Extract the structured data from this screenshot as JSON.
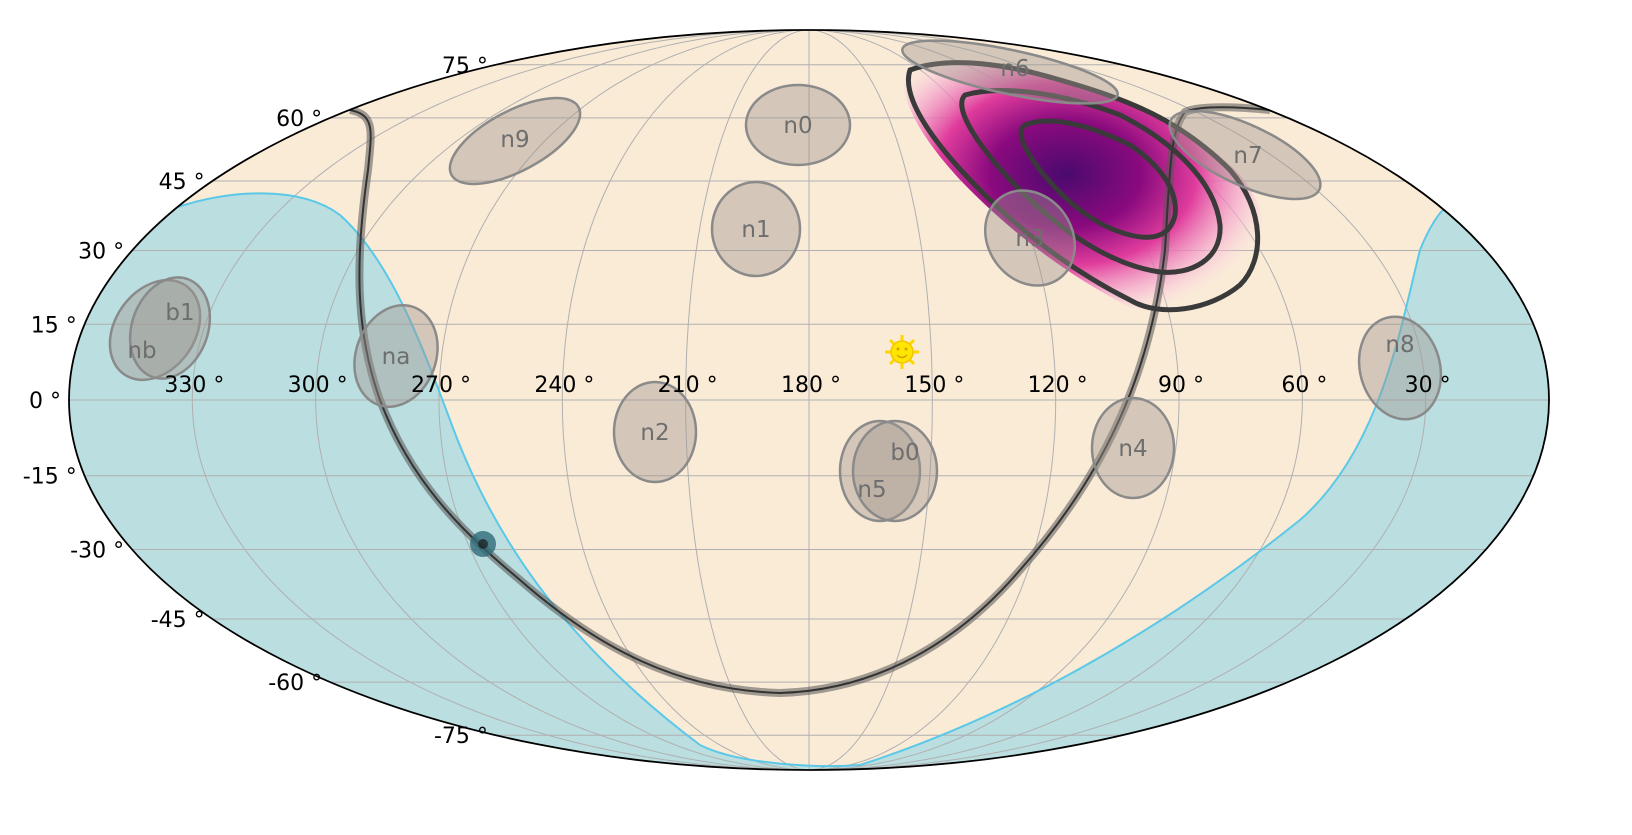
{
  "chart_data": {
    "type": "skymap",
    "projection": "mollweide",
    "title": "",
    "lon_ticks": [
      330,
      300,
      270,
      240,
      210,
      180,
      150,
      120,
      90,
      60,
      30
    ],
    "lon_tick_labels": [
      "330 °",
      "300 °",
      "270 °",
      "240 °",
      "210 °",
      "180 °",
      "150 °",
      "120 °",
      "90 °",
      "60 °",
      "30 °"
    ],
    "lat_ticks": [
      75,
      60,
      45,
      30,
      15,
      0,
      -15,
      -30,
      -45,
      -60,
      -75
    ],
    "lat_tick_labels": [
      "75 °",
      "60 °",
      "45 °",
      "30 °",
      "15 °",
      "0 °",
      "-15 °",
      "-30 °",
      "-45 °",
      "-60 °",
      "-75 °"
    ],
    "grid": true,
    "detectors": [
      "n0",
      "n1",
      "n2",
      "n3",
      "n4",
      "n5",
      "n6",
      "n7",
      "n8",
      "n9",
      "na",
      "nb",
      "b0",
      "b1"
    ],
    "layers": {
      "earth_occultation": "#bbdee0",
      "earth_limb": "#5bc8e8",
      "galactic_plane": "#555555",
      "localization_peak": "#4a0a6e",
      "localization_edge": "#e83ea0",
      "sky_background": "#faebd7",
      "sun_icon": "sun-icon"
    }
  }
}
